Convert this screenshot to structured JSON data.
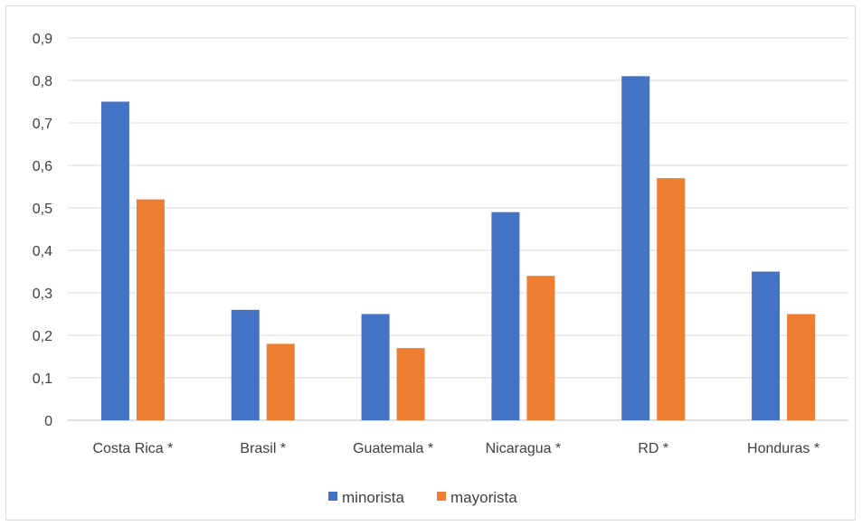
{
  "chart_data": {
    "type": "bar",
    "categories": [
      "Costa Rica *",
      "Brasil *",
      "Guatemala *",
      "Nicaragua *",
      "RD *",
      "Honduras *"
    ],
    "series": [
      {
        "name": "minorista",
        "color": "#4472c4",
        "values": [
          0.75,
          0.26,
          0.25,
          0.49,
          0.81,
          0.35
        ]
      },
      {
        "name": "mayorista",
        "color": "#ed7d31",
        "values": [
          0.52,
          0.18,
          0.17,
          0.34,
          0.57,
          0.25
        ]
      }
    ],
    "yticks": [
      "0",
      "0,1",
      "0,2",
      "0,3",
      "0,4",
      "0,5",
      "0,6",
      "0,7",
      "0,8",
      "0,9"
    ],
    "ylim": [
      0,
      0.9
    ],
    "grid": true,
    "legend_position": "bottom"
  }
}
